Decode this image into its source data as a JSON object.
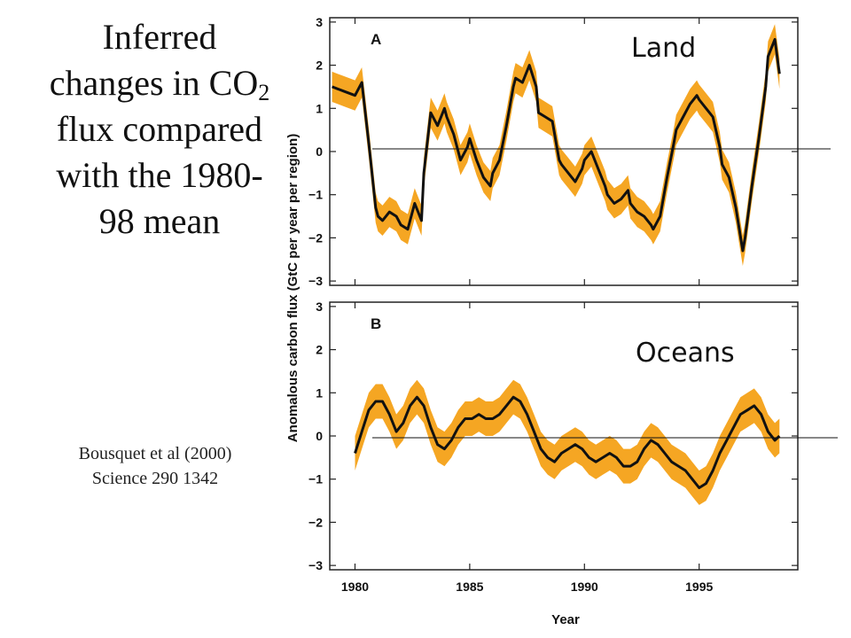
{
  "slide": {
    "title_lines": [
      "Inferred",
      "changes in CO",
      "flux compared",
      "with the 1980-",
      "98 mean"
    ],
    "title_subscript": "2",
    "citation_lines": [
      "Bousquet et al (2000)",
      "Science 290 1342"
    ]
  },
  "colors": {
    "uncertainty_band": "#f5a623",
    "mean_line": "#111111",
    "frame": "#222222"
  },
  "chart_data": [
    {
      "type": "area",
      "panel_label": "A",
      "region_label": "Land",
      "ylabel": "Anomalous carbon flux (GtC per year per region)",
      "xlabel": "Year",
      "xlim": [
        1978.9,
        1999.3
      ],
      "ylim": [
        -3.1,
        3.1
      ],
      "x_ticks": [
        "1980",
        "1985",
        "1990",
        "1995"
      ],
      "y_ticks": [
        "3",
        "2",
        "1",
        "0",
        "−1",
        "−2",
        "−3"
      ],
      "series": [
        {
          "x": [
            1979.0,
            1979.5,
            1980.0,
            1980.3,
            1980.6,
            1980.9,
            1981.0,
            1981.2,
            1981.5,
            1981.8,
            1982.0,
            1982.3,
            1982.6,
            1982.9,
            1983.0,
            1983.3,
            1983.6,
            1983.9,
            1984.0,
            1984.3,
            1984.6,
            1984.9,
            1985.0,
            1985.3,
            1985.6,
            1985.9,
            1986.0,
            1986.3,
            1986.6,
            1986.9,
            1987.0,
            1987.3,
            1987.6,
            1987.9,
            1988.0,
            1988.3,
            1988.6,
            1988.9,
            1989.0,
            1989.3,
            1989.6,
            1989.9,
            1990.0,
            1990.3,
            1990.6,
            1990.9,
            1991.0,
            1991.3,
            1991.6,
            1991.9,
            1992.0,
            1992.3,
            1992.6,
            1992.9,
            1993.0,
            1993.3,
            1993.6,
            1993.9,
            1994.0,
            1994.3,
            1994.6,
            1994.9,
            1995.0,
            1995.3,
            1995.6,
            1995.9,
            1996.0,
            1996.3,
            1996.6,
            1996.9,
            1997.0,
            1997.3,
            1997.6,
            1997.9,
            1998.0,
            1998.3,
            1998.5
          ],
          "y": [
            1.5,
            1.4,
            1.3,
            1.6,
            0.2,
            -1.3,
            -1.5,
            -1.6,
            -1.4,
            -1.5,
            -1.7,
            -1.8,
            -1.2,
            -1.6,
            -0.5,
            0.9,
            0.6,
            1.0,
            0.8,
            0.4,
            -0.2,
            0.1,
            0.3,
            -0.2,
            -0.6,
            -0.8,
            -0.5,
            -0.2,
            0.6,
            1.5,
            1.7,
            1.6,
            2.0,
            1.5,
            0.9,
            0.8,
            0.7,
            -0.2,
            -0.3,
            -0.5,
            -0.7,
            -0.4,
            -0.2,
            0.0,
            -0.4,
            -0.8,
            -1.0,
            -1.2,
            -1.1,
            -0.9,
            -1.2,
            -1.4,
            -1.5,
            -1.7,
            -1.8,
            -1.5,
            -0.6,
            0.2,
            0.5,
            0.8,
            1.1,
            1.3,
            1.2,
            1.0,
            0.8,
            0.1,
            -0.3,
            -0.6,
            -1.3,
            -2.3,
            -2.0,
            -0.8,
            0.3,
            1.5,
            2.2,
            2.6,
            1.8
          ],
          "band": 0.35
        }
      ]
    },
    {
      "type": "area",
      "panel_label": "B",
      "region_label": "Oceans",
      "ylabel": "",
      "xlabel": "Year",
      "xlim": [
        1978.9,
        1999.3
      ],
      "ylim": [
        -3.1,
        3.1
      ],
      "x_ticks": [
        "1980",
        "1985",
        "1990",
        "1995"
      ],
      "y_ticks": [
        "3",
        "2",
        "1",
        "0",
        "−1",
        "−2",
        "−3"
      ],
      "series": [
        {
          "x": [
            1980.0,
            1980.3,
            1980.6,
            1980.9,
            1981.2,
            1981.5,
            1981.8,
            1982.1,
            1982.4,
            1982.7,
            1983.0,
            1983.3,
            1983.6,
            1983.9,
            1984.2,
            1984.5,
            1984.8,
            1985.1,
            1985.4,
            1985.7,
            1986.0,
            1986.3,
            1986.6,
            1986.9,
            1987.2,
            1987.5,
            1987.8,
            1988.1,
            1988.4,
            1988.7,
            1989.0,
            1989.3,
            1989.6,
            1989.9,
            1990.2,
            1990.5,
            1990.8,
            1991.1,
            1991.4,
            1991.7,
            1992.0,
            1992.3,
            1992.6,
            1992.9,
            1993.2,
            1993.5,
            1993.8,
            1994.1,
            1994.4,
            1994.7,
            1995.0,
            1995.3,
            1995.6,
            1995.9,
            1996.2,
            1996.5,
            1996.8,
            1997.1,
            1997.4,
            1997.7,
            1998.0,
            1998.3,
            1998.5
          ],
          "y": [
            -0.4,
            0.1,
            0.6,
            0.8,
            0.8,
            0.5,
            0.1,
            0.3,
            0.7,
            0.9,
            0.7,
            0.2,
            -0.2,
            -0.3,
            -0.1,
            0.2,
            0.4,
            0.4,
            0.5,
            0.4,
            0.4,
            0.5,
            0.7,
            0.9,
            0.8,
            0.5,
            0.1,
            -0.3,
            -0.5,
            -0.6,
            -0.4,
            -0.3,
            -0.2,
            -0.3,
            -0.5,
            -0.6,
            -0.5,
            -0.4,
            -0.5,
            -0.7,
            -0.7,
            -0.6,
            -0.3,
            -0.1,
            -0.2,
            -0.4,
            -0.6,
            -0.7,
            -0.8,
            -1.0,
            -1.2,
            -1.1,
            -0.8,
            -0.4,
            -0.1,
            0.2,
            0.5,
            0.6,
            0.7,
            0.5,
            0.1,
            -0.1,
            0.0
          ],
          "band": 0.4
        }
      ]
    }
  ]
}
